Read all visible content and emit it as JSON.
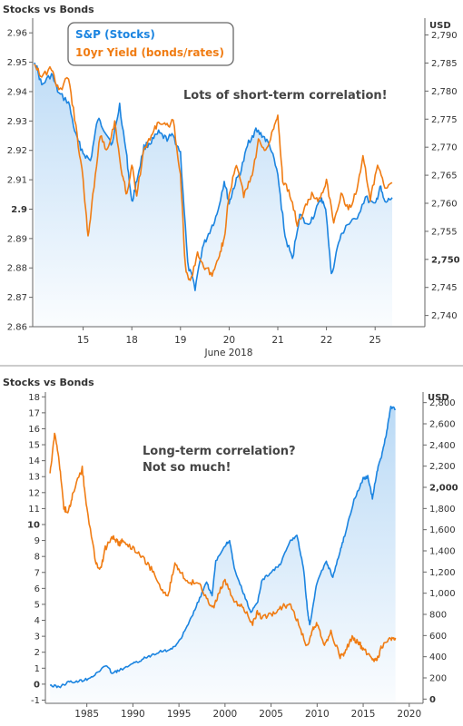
{
  "chart_data": [
    {
      "type": "line",
      "title": "Stocks vs Bonds",
      "xlabel": "June 2018",
      "x_ticks": [
        "15",
        "18",
        "19",
        "20",
        "21",
        "22",
        "25"
      ],
      "y_left_ticks": [
        "2.86",
        "2.87",
        "2.88",
        "2.89",
        "2.9",
        "2.91",
        "2.92",
        "2.93",
        "2.94",
        "2.95",
        "2.96"
      ],
      "y_left_lim": [
        2.86,
        2.965
      ],
      "y_right_unit": "USD",
      "y_right_ticks": [
        "2,740",
        "2,745",
        "2,750",
        "2,755",
        "2,760",
        "2,765",
        "2,770",
        "2,775",
        "2,780",
        "2,785",
        "2,790"
      ],
      "y_right_lim": [
        2.738,
        2.793
      ],
      "legend": "top-left",
      "annotation": "Lots of short-term correlation!",
      "series": [
        {
          "name": "S&P (Stocks)",
          "color": "#1b84e0",
          "axis": "right",
          "fill": true,
          "x": [
            0.0,
            0.15,
            0.35,
            0.5,
            0.7,
            0.85,
            1.0,
            1.15,
            1.3,
            1.45,
            1.6,
            1.75,
            1.9,
            2.0,
            2.1,
            2.25,
            2.4,
            2.55,
            2.7,
            2.85,
            3.0,
            3.15,
            3.3,
            3.45,
            3.6,
            3.75,
            3.9,
            4.0,
            4.1,
            4.25,
            4.4,
            4.55,
            4.7,
            4.85,
            5.0,
            5.15,
            5.3,
            5.45,
            5.6,
            5.75,
            5.9,
            6.0,
            6.1,
            6.25,
            6.4,
            6.6,
            6.8,
            7.0,
            7.1,
            7.2,
            7.35
          ],
          "y": [
            2785.5,
            2781,
            2783,
            2779.5,
            2778,
            2772,
            2769,
            2767.5,
            2775,
            2773,
            2770.5,
            2777.5,
            2768,
            2760,
            2764,
            2770,
            2771,
            2772.5,
            2771.5,
            2772,
            2769,
            2749,
            2745,
            2752,
            2755,
            2758,
            2764,
            2760,
            2763,
            2766,
            2771,
            2773,
            2772,
            2770,
            2765,
            2754,
            2750,
            2758,
            2756,
            2758,
            2761,
            2758,
            2747,
            2753,
            2756,
            2757,
            2761,
            2759.5,
            2763,
            2760,
            2761
          ]
        },
        {
          "name": "10yr Yield (bonds/rates)",
          "color": "#f07c13",
          "axis": "left",
          "fill": false,
          "x": [
            0.0,
            0.15,
            0.35,
            0.5,
            0.7,
            0.85,
            1.0,
            1.1,
            1.2,
            1.35,
            1.5,
            1.65,
            1.8,
            1.9,
            2.0,
            2.1,
            2.25,
            2.4,
            2.55,
            2.7,
            2.85,
            3.0,
            3.1,
            3.2,
            3.35,
            3.5,
            3.65,
            3.8,
            3.9,
            4.0,
            4.15,
            4.3,
            4.45,
            4.6,
            4.75,
            4.9,
            5.0,
            5.1,
            5.25,
            5.4,
            5.55,
            5.7,
            5.85,
            6.0,
            6.15,
            6.3,
            6.45,
            6.6,
            6.75,
            6.9,
            7.05,
            7.2,
            7.35
          ],
          "y": [
            2.95,
            2.945,
            2.948,
            2.94,
            2.945,
            2.928,
            2.91,
            2.89,
            2.905,
            2.925,
            2.92,
            2.93,
            2.912,
            2.905,
            2.915,
            2.905,
            2.92,
            2.925,
            2.93,
            2.928,
            2.93,
            2.912,
            2.88,
            2.875,
            2.885,
            2.88,
            2.878,
            2.885,
            2.89,
            2.905,
            2.915,
            2.905,
            2.91,
            2.923,
            2.92,
            2.927,
            2.932,
            2.91,
            2.905,
            2.895,
            2.9,
            2.905,
            2.903,
            2.91,
            2.895,
            2.905,
            2.9,
            2.905,
            2.918,
            2.903,
            2.915,
            2.907,
            2.909
          ]
        }
      ]
    },
    {
      "type": "line",
      "title": "Stocks vs Bonds",
      "x_ticks": [
        "1985",
        "1990",
        "1995",
        "2000",
        "2005",
        "2010",
        "2015",
        "2020"
      ],
      "xlim": [
        1980.5,
        2021.5
      ],
      "y_left_ticks": [
        "-1",
        "0",
        "1",
        "2",
        "3",
        "4",
        "5",
        "6",
        "7",
        "8",
        "9",
        "10",
        "11",
        "12",
        "13",
        "14",
        "15",
        "16",
        "17",
        "18"
      ],
      "y_left_lim": [
        -1.2,
        18.3
      ],
      "y_right_unit": "USD",
      "y_right_ticks": [
        "0",
        "200",
        "400",
        "600",
        "800",
        "1,000",
        "1,200",
        "1,400",
        "1,600",
        "1,800",
        "2,000",
        "2,200",
        "2,400",
        "2,600",
        "2,800"
      ],
      "y_right_lim": [
        -40,
        2900
      ],
      "annotation": [
        "Long-term correlation?",
        "Not so much!"
      ],
      "series": [
        {
          "name": "S&P (Stocks)",
          "color": "#1b84e0",
          "axis": "right",
          "fill": true,
          "x": [
            1981.0,
            1982.0,
            1983.0,
            1984.0,
            1985.0,
            1986.0,
            1987.0,
            1987.8,
            1988.5,
            1990.0,
            1991.0,
            1992.0,
            1993.0,
            1994.0,
            1995.0,
            1996.0,
            1997.0,
            1998.0,
            1998.6,
            1999.0,
            2000.0,
            2000.5,
            2001.0,
            2002.0,
            2002.8,
            2003.5,
            2004.0,
            2005.0,
            2006.0,
            2007.0,
            2007.8,
            2008.5,
            2009.0,
            2009.2,
            2010.0,
            2011.0,
            2011.7,
            2012.5,
            2013.0,
            2014.0,
            2015.0,
            2015.5,
            2016.0,
            2016.5,
            2017.0,
            2017.5,
            2018.0,
            2018.5
          ],
          "y": [
            130,
            115,
            160,
            165,
            190,
            235,
            320,
            245,
            270,
            330,
            375,
            415,
            455,
            460,
            540,
            700,
            900,
            1100,
            980,
            1300,
            1450,
            1500,
            1230,
            1000,
            820,
            900,
            1120,
            1200,
            1270,
            1480,
            1550,
            1250,
            800,
            700,
            1110,
            1300,
            1150,
            1400,
            1550,
            1880,
            2080,
            2100,
            1900,
            2150,
            2300,
            2500,
            2760,
            2740
          ]
        },
        {
          "name": "10yr Yield (bonds/rates)",
          "color": "#f07c13",
          "axis": "left",
          "fill": false,
          "x": [
            1981.0,
            1981.5,
            1982.0,
            1982.5,
            1983.0,
            1983.5,
            1984.5,
            1985.0,
            1986.0,
            1986.5,
            1987.0,
            1987.8,
            1988.5,
            1989.0,
            1990.0,
            1991.0,
            1992.0,
            1993.0,
            1993.8,
            1994.5,
            1995.0,
            1996.0,
            1997.0,
            1998.0,
            1998.8,
            1999.5,
            2000.0,
            2001.0,
            2002.0,
            2003.0,
            2003.5,
            2004.0,
            2005.0,
            2006.0,
            2007.0,
            2008.0,
            2008.9,
            2009.5,
            2010.0,
            2010.8,
            2011.5,
            2012.5,
            2013.0,
            2013.8,
            2014.5,
            2015.0,
            2016.0,
            2016.5,
            2017.0,
            2018.0,
            2018.5
          ],
          "y": [
            13.2,
            15.8,
            14,
            11,
            10.8,
            12,
            13.5,
            11,
            7.5,
            7.2,
            8.5,
            9.2,
            8.8,
            9,
            8.5,
            8,
            7.2,
            6,
            5.5,
            7.5,
            7.2,
            6.3,
            6.5,
            5.3,
            4.8,
            6,
            6.5,
            5.1,
            4.8,
            3.8,
            4.5,
            4.2,
            4.3,
            4.8,
            5,
            3.8,
            2.3,
            3.5,
            3.8,
            2.5,
            3.3,
            1.7,
            2,
            2.9,
            2.6,
            2.2,
            1.6,
            1.5,
            2.4,
            2.8,
            2.9
          ]
        }
      ]
    }
  ]
}
